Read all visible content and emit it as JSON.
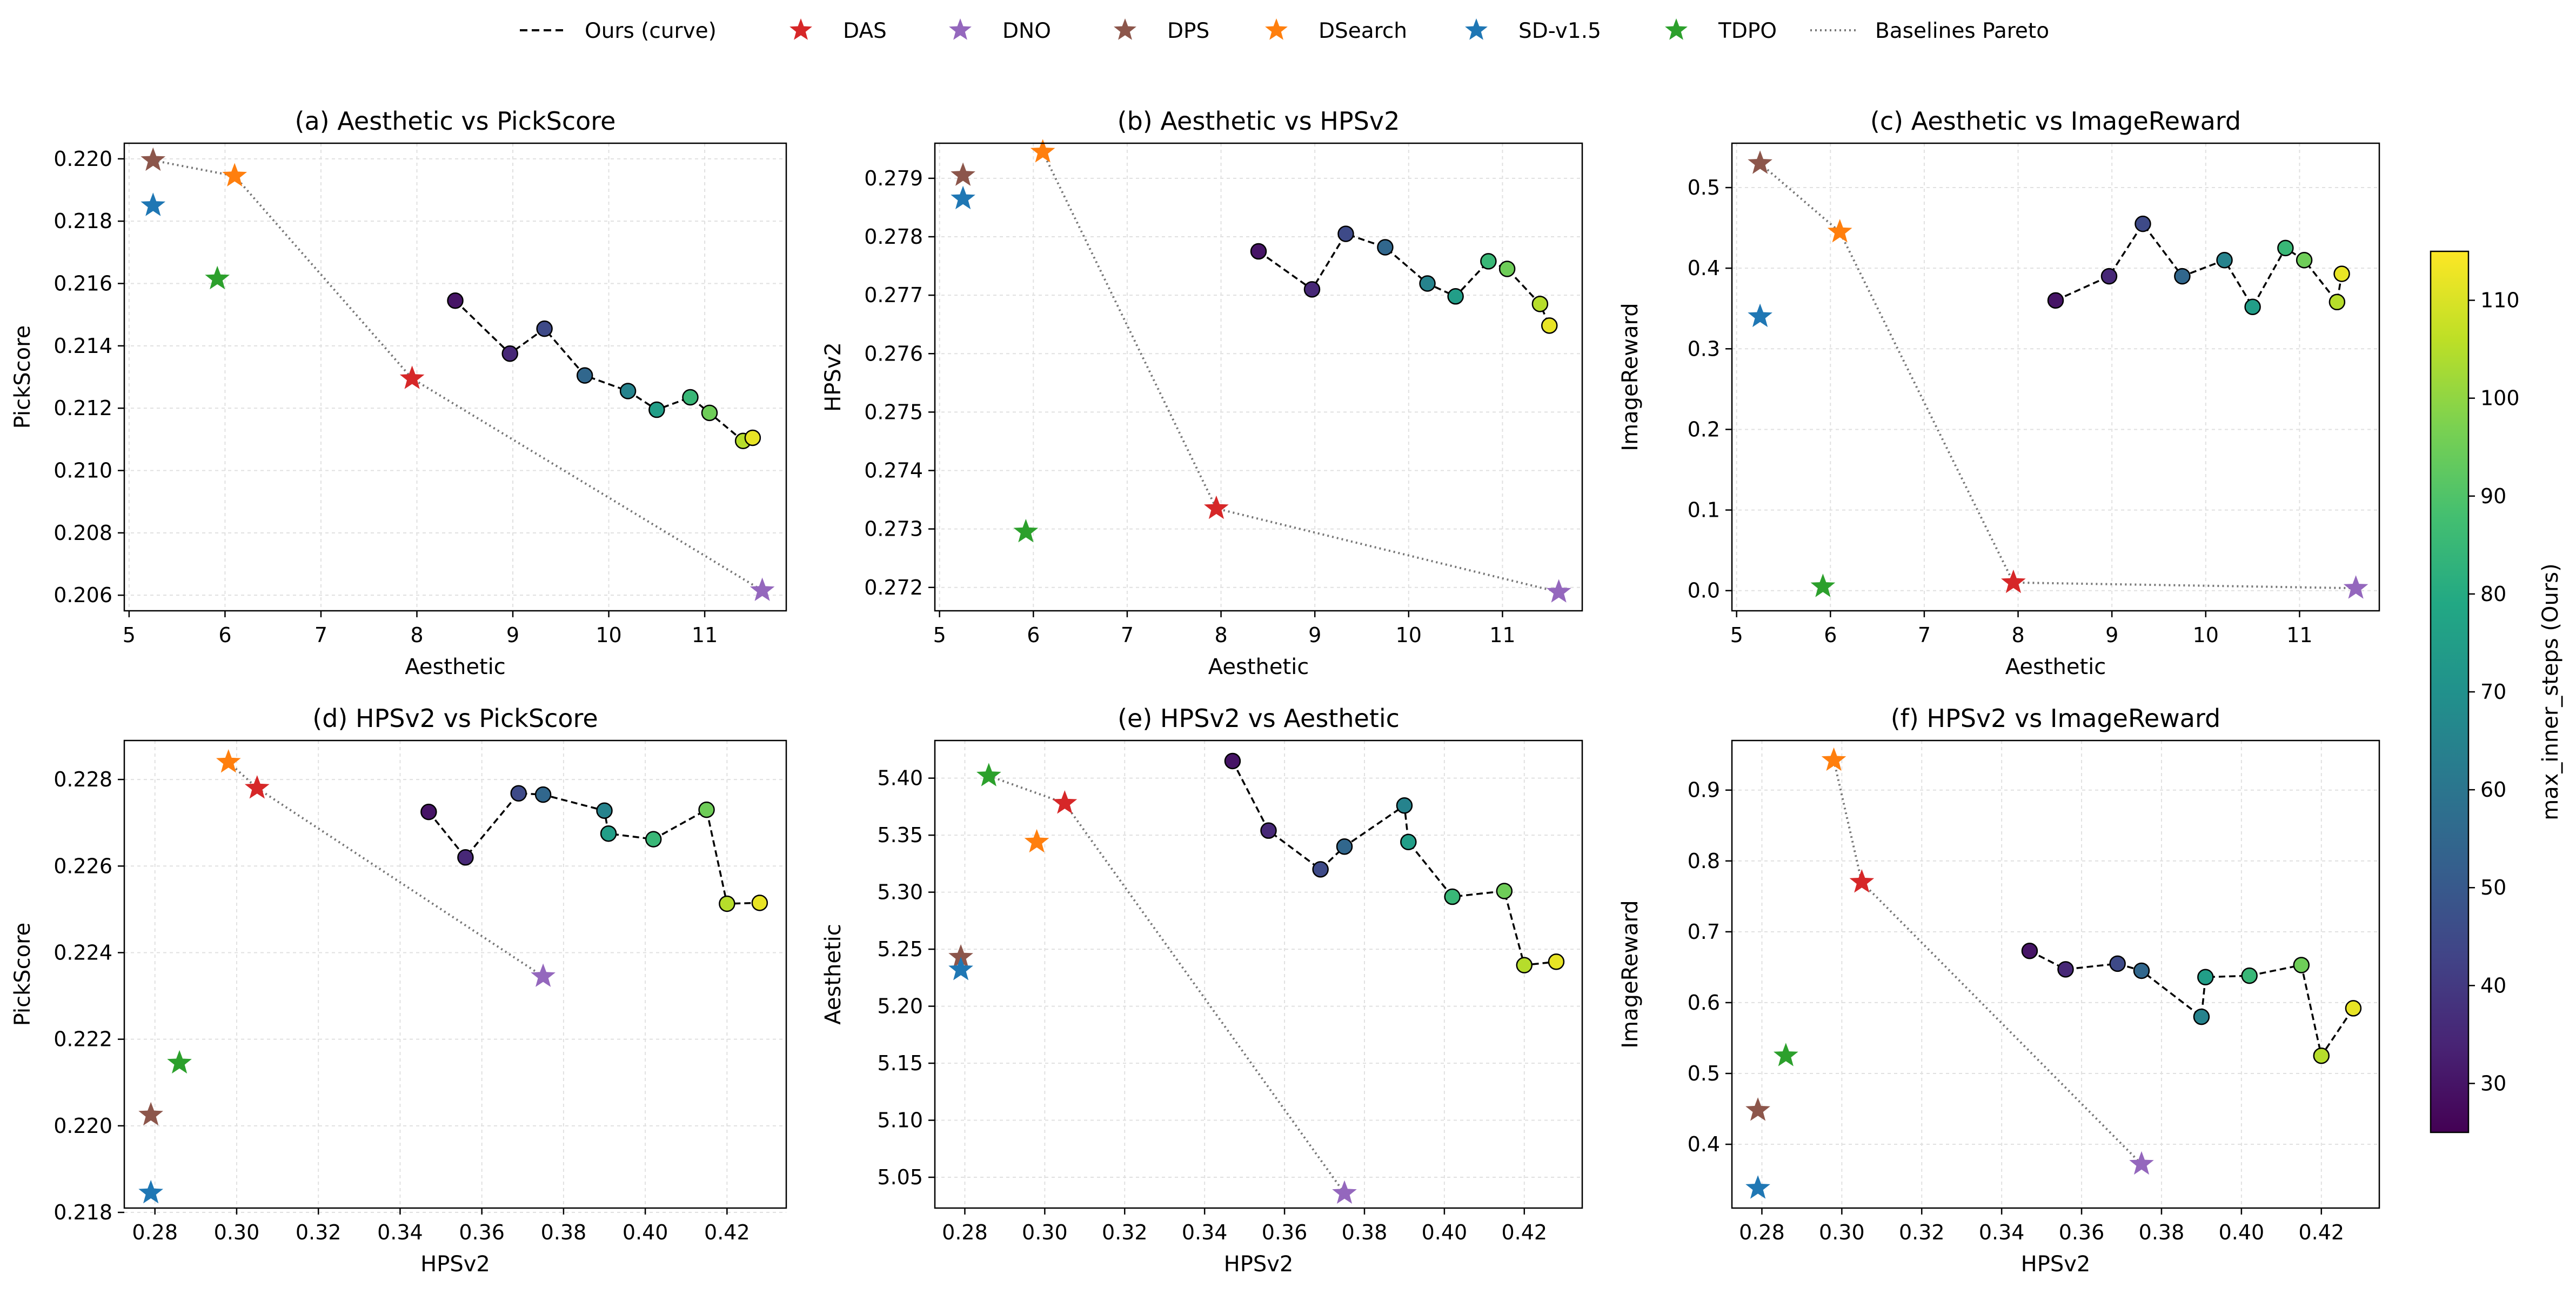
{
  "legend": {
    "items": [
      {
        "label": "Ours (curve)",
        "kind": "dashed-line",
        "color": "#000000"
      },
      {
        "label": "DAS",
        "kind": "star",
        "color": "#d62728"
      },
      {
        "label": "DNO",
        "kind": "star",
        "color": "#9467bd"
      },
      {
        "label": "DPS",
        "kind": "star",
        "color": "#8c564b"
      },
      {
        "label": "DSearch",
        "kind": "star",
        "color": "#ff7f0e"
      },
      {
        "label": "SD-v1.5",
        "kind": "star",
        "color": "#1f77b4"
      },
      {
        "label": "TDPO",
        "kind": "star",
        "color": "#2ca02c"
      },
      {
        "label": "Baselines Pareto",
        "kind": "dotted-line",
        "color": "#777777"
      }
    ]
  },
  "colorbar": {
    "label": "max_inner_steps (Ours)",
    "range": [
      25,
      115
    ],
    "ticks": [
      30,
      40,
      50,
      60,
      70,
      80,
      90,
      100,
      110
    ]
  },
  "chart_data": [
    {
      "type": "scatter",
      "title": "(a) Aesthetic vs PickScore",
      "xlabel": "Aesthetic",
      "ylabel": "PickScore",
      "xlim": [
        4.95,
        11.85
      ],
      "ylim": [
        0.2055,
        0.2205
      ],
      "xticks": [
        "5",
        "6",
        "7",
        "8",
        "9",
        "10",
        "11"
      ],
      "xtick_values": [
        5,
        6,
        7,
        8,
        9,
        10,
        11
      ],
      "yticks": [
        "0.206",
        "0.208",
        "0.210",
        "0.212",
        "0.214",
        "0.216",
        "0.218",
        "0.220"
      ],
      "ytick_values": [
        0.206,
        0.208,
        0.21,
        0.212,
        0.214,
        0.216,
        0.218,
        0.22
      ],
      "baselines": [
        {
          "name": "DPS",
          "x": 5.25,
          "y": 0.21995
        },
        {
          "name": "SD-v1.5",
          "x": 5.25,
          "y": 0.2185
        },
        {
          "name": "DSearch",
          "x": 6.1,
          "y": 0.21945
        },
        {
          "name": "TDPO",
          "x": 5.92,
          "y": 0.21615
        },
        {
          "name": "DAS",
          "x": 7.95,
          "y": 0.21295
        },
        {
          "name": "DNO",
          "x": 11.6,
          "y": 0.20615
        }
      ],
      "pareto": [
        [
          5.25,
          0.21995
        ],
        [
          6.1,
          0.21945
        ],
        [
          7.95,
          0.21295
        ],
        [
          11.6,
          0.20615
        ]
      ],
      "ours": [
        {
          "x": 8.4,
          "y": 0.21545,
          "steps": 30
        },
        {
          "x": 8.97,
          "y": 0.21375,
          "steps": 35
        },
        {
          "x": 9.33,
          "y": 0.21455,
          "steps": 45
        },
        {
          "x": 9.75,
          "y": 0.21305,
          "steps": 55
        },
        {
          "x": 10.2,
          "y": 0.21255,
          "steps": 65
        },
        {
          "x": 10.5,
          "y": 0.21195,
          "steps": 75
        },
        {
          "x": 10.85,
          "y": 0.21235,
          "steps": 85
        },
        {
          "x": 11.05,
          "y": 0.21185,
          "steps": 95
        },
        {
          "x": 11.4,
          "y": 0.21095,
          "steps": 105
        },
        {
          "x": 11.5,
          "y": 0.21105,
          "steps": 112
        }
      ]
    },
    {
      "type": "scatter",
      "title": "(b) Aesthetic vs HPSv2",
      "xlabel": "Aesthetic",
      "ylabel": "HPSv2",
      "xlim": [
        4.95,
        11.85
      ],
      "ylim": [
        0.2716,
        0.2796
      ],
      "xticks": [
        "5",
        "6",
        "7",
        "8",
        "9",
        "10",
        "11"
      ],
      "xtick_values": [
        5,
        6,
        7,
        8,
        9,
        10,
        11
      ],
      "yticks": [
        "0.272",
        "0.273",
        "0.274",
        "0.275",
        "0.276",
        "0.277",
        "0.278",
        "0.279"
      ],
      "ytick_values": [
        0.272,
        0.273,
        0.274,
        0.275,
        0.276,
        0.277,
        0.278,
        0.279
      ],
      "baselines": [
        {
          "name": "DPS",
          "x": 5.25,
          "y": 0.27905
        },
        {
          "name": "SD-v1.5",
          "x": 5.25,
          "y": 0.27865
        },
        {
          "name": "DSearch",
          "x": 6.1,
          "y": 0.27945
        },
        {
          "name": "TDPO",
          "x": 5.92,
          "y": 0.27295
        },
        {
          "name": "DAS",
          "x": 7.95,
          "y": 0.27335
        },
        {
          "name": "DNO",
          "x": 11.6,
          "y": 0.27192
        }
      ],
      "pareto": [
        [
          6.1,
          0.27945
        ],
        [
          7.95,
          0.27335
        ],
        [
          11.6,
          0.27192
        ]
      ],
      "ours": [
        {
          "x": 8.4,
          "y": 0.27775,
          "steps": 30
        },
        {
          "x": 8.97,
          "y": 0.2771,
          "steps": 35
        },
        {
          "x": 9.33,
          "y": 0.27805,
          "steps": 45
        },
        {
          "x": 9.75,
          "y": 0.27782,
          "steps": 55
        },
        {
          "x": 10.2,
          "y": 0.2772,
          "steps": 65
        },
        {
          "x": 10.5,
          "y": 0.27698,
          "steps": 75
        },
        {
          "x": 10.85,
          "y": 0.27758,
          "steps": 85
        },
        {
          "x": 11.05,
          "y": 0.27745,
          "steps": 95
        },
        {
          "x": 11.4,
          "y": 0.27685,
          "steps": 105
        },
        {
          "x": 11.5,
          "y": 0.27648,
          "steps": 112
        }
      ]
    },
    {
      "type": "scatter",
      "title": "(c) Aesthetic vs ImageReward",
      "xlabel": "Aesthetic",
      "ylabel": "ImageReward",
      "xlim": [
        4.95,
        11.85
      ],
      "ylim": [
        -0.025,
        0.555
      ],
      "xticks": [
        "5",
        "6",
        "7",
        "8",
        "9",
        "10",
        "11"
      ],
      "xtick_values": [
        5,
        6,
        7,
        8,
        9,
        10,
        11
      ],
      "yticks": [
        "0.0",
        "0.1",
        "0.2",
        "0.3",
        "0.4",
        "0.5"
      ],
      "ytick_values": [
        0,
        0.1,
        0.2,
        0.3,
        0.4,
        0.5
      ],
      "baselines": [
        {
          "name": "DPS",
          "x": 5.25,
          "y": 0.53
        },
        {
          "name": "SD-v1.5",
          "x": 5.25,
          "y": 0.34
        },
        {
          "name": "DSearch",
          "x": 6.1,
          "y": 0.445
        },
        {
          "name": "TDPO",
          "x": 5.92,
          "y": 0.005
        },
        {
          "name": "DAS",
          "x": 7.95,
          "y": 0.01
        },
        {
          "name": "DNO",
          "x": 11.6,
          "y": 0.003
        }
      ],
      "pareto": [
        [
          5.25,
          0.53
        ],
        [
          6.1,
          0.445
        ],
        [
          7.95,
          0.01
        ],
        [
          11.6,
          0.003
        ]
      ],
      "ours": [
        {
          "x": 8.4,
          "y": 0.36,
          "steps": 30
        },
        {
          "x": 8.97,
          "y": 0.39,
          "steps": 35
        },
        {
          "x": 9.33,
          "y": 0.455,
          "steps": 45
        },
        {
          "x": 9.75,
          "y": 0.39,
          "steps": 55
        },
        {
          "x": 10.2,
          "y": 0.41,
          "steps": 65
        },
        {
          "x": 10.5,
          "y": 0.352,
          "steps": 75
        },
        {
          "x": 10.85,
          "y": 0.425,
          "steps": 85
        },
        {
          "x": 11.05,
          "y": 0.41,
          "steps": 95
        },
        {
          "x": 11.4,
          "y": 0.358,
          "steps": 105
        },
        {
          "x": 11.45,
          "y": 0.393,
          "steps": 112
        }
      ]
    },
    {
      "type": "scatter",
      "title": "(d) HPSv2 vs PickScore",
      "xlabel": "HPSv2",
      "ylabel": "PickScore",
      "xlim": [
        0.2725,
        0.4345
      ],
      "ylim": [
        0.2181,
        0.2289
      ],
      "xticks": [
        "0.28",
        "0.30",
        "0.32",
        "0.34",
        "0.36",
        "0.38",
        "0.40",
        "0.42"
      ],
      "xtick_values": [
        0.28,
        0.3,
        0.32,
        0.34,
        0.36,
        0.38,
        0.4,
        0.42
      ],
      "yticks": [
        "0.218",
        "0.220",
        "0.222",
        "0.224",
        "0.226",
        "0.228"
      ],
      "ytick_values": [
        0.218,
        0.22,
        0.222,
        0.224,
        0.226,
        0.228
      ],
      "baselines": [
        {
          "name": "DSearch",
          "x": 0.298,
          "y": 0.2284
        },
        {
          "name": "DAS",
          "x": 0.305,
          "y": 0.2278
        },
        {
          "name": "DPS",
          "x": 0.279,
          "y": 0.22025
        },
        {
          "name": "TDPO",
          "x": 0.286,
          "y": 0.22145
        },
        {
          "name": "SD-v1.5",
          "x": 0.279,
          "y": 0.21845
        },
        {
          "name": "DNO",
          "x": 0.375,
          "y": 0.22345
        }
      ],
      "pareto": [
        [
          0.298,
          0.2284
        ],
        [
          0.305,
          0.2278
        ],
        [
          0.375,
          0.22345
        ]
      ],
      "ours": [
        {
          "x": 0.347,
          "y": 0.22725,
          "steps": 30
        },
        {
          "x": 0.356,
          "y": 0.2262,
          "steps": 35
        },
        {
          "x": 0.369,
          "y": 0.22768,
          "steps": 45
        },
        {
          "x": 0.375,
          "y": 0.22765,
          "steps": 55
        },
        {
          "x": 0.39,
          "y": 0.22728,
          "steps": 65
        },
        {
          "x": 0.391,
          "y": 0.22675,
          "steps": 75
        },
        {
          "x": 0.402,
          "y": 0.22662,
          "steps": 85
        },
        {
          "x": 0.415,
          "y": 0.2273,
          "steps": 95
        },
        {
          "x": 0.42,
          "y": 0.22513,
          "steps": 105
        },
        {
          "x": 0.428,
          "y": 0.22515,
          "steps": 112
        }
      ]
    },
    {
      "type": "scatter",
      "title": "(e) HPSv2 vs Aesthetic",
      "xlabel": "HPSv2",
      "ylabel": "Aesthetic",
      "xlim": [
        0.2725,
        0.4345
      ],
      "ylim": [
        5.023,
        5.433
      ],
      "xticks": [
        "0.28",
        "0.30",
        "0.32",
        "0.34",
        "0.36",
        "0.38",
        "0.40",
        "0.42"
      ],
      "xtick_values": [
        0.28,
        0.3,
        0.32,
        0.34,
        0.36,
        0.38,
        0.4,
        0.42
      ],
      "yticks": [
        "5.05",
        "5.10",
        "5.15",
        "5.20",
        "5.25",
        "5.30",
        "5.35",
        "5.40"
      ],
      "ytick_values": [
        5.05,
        5.1,
        5.15,
        5.2,
        5.25,
        5.3,
        5.35,
        5.4
      ],
      "baselines": [
        {
          "name": "TDPO",
          "x": 0.286,
          "y": 5.402
        },
        {
          "name": "DAS",
          "x": 0.305,
          "y": 5.378
        },
        {
          "name": "DSearch",
          "x": 0.298,
          "y": 5.344
        },
        {
          "name": "DPS",
          "x": 0.279,
          "y": 5.243
        },
        {
          "name": "SD-v1.5",
          "x": 0.279,
          "y": 5.232
        },
        {
          "name": "DNO",
          "x": 0.375,
          "y": 5.036
        }
      ],
      "pareto": [
        [
          0.286,
          5.402
        ],
        [
          0.305,
          5.378
        ],
        [
          0.375,
          5.036
        ]
      ],
      "ours": [
        {
          "x": 0.347,
          "y": 5.415,
          "steps": 30
        },
        {
          "x": 0.356,
          "y": 5.354,
          "steps": 35
        },
        {
          "x": 0.369,
          "y": 5.32,
          "steps": 45
        },
        {
          "x": 0.375,
          "y": 5.34,
          "steps": 55
        },
        {
          "x": 0.39,
          "y": 5.376,
          "steps": 65
        },
        {
          "x": 0.391,
          "y": 5.344,
          "steps": 75
        },
        {
          "x": 0.402,
          "y": 5.296,
          "steps": 85
        },
        {
          "x": 0.415,
          "y": 5.301,
          "steps": 95
        },
        {
          "x": 0.42,
          "y": 5.236,
          "steps": 105
        },
        {
          "x": 0.428,
          "y": 5.239,
          "steps": 112
        }
      ]
    },
    {
      "type": "scatter",
      "title": "(f) HPSv2 vs ImageReward",
      "xlabel": "HPSv2",
      "ylabel": "ImageReward",
      "xlim": [
        0.2725,
        0.4345
      ],
      "ylim": [
        0.31,
        0.97
      ],
      "xticks": [
        "0.28",
        "0.30",
        "0.32",
        "0.34",
        "0.36",
        "0.38",
        "0.40",
        "0.42"
      ],
      "xtick_values": [
        0.28,
        0.3,
        0.32,
        0.34,
        0.36,
        0.38,
        0.4,
        0.42
      ],
      "yticks": [
        "0.4",
        "0.5",
        "0.6",
        "0.7",
        "0.8",
        "0.9"
      ],
      "ytick_values": [
        0.4,
        0.5,
        0.6,
        0.7,
        0.8,
        0.9
      ],
      "baselines": [
        {
          "name": "DSearch",
          "x": 0.298,
          "y": 0.942
        },
        {
          "name": "DAS",
          "x": 0.305,
          "y": 0.77
        },
        {
          "name": "TDPO",
          "x": 0.286,
          "y": 0.525
        },
        {
          "name": "DPS",
          "x": 0.279,
          "y": 0.448
        },
        {
          "name": "SD-v1.5",
          "x": 0.279,
          "y": 0.338
        },
        {
          "name": "DNO",
          "x": 0.375,
          "y": 0.372
        }
      ],
      "pareto": [
        [
          0.298,
          0.942
        ],
        [
          0.305,
          0.77
        ],
        [
          0.375,
          0.372
        ]
      ],
      "ours": [
        {
          "x": 0.347,
          "y": 0.673,
          "steps": 30
        },
        {
          "x": 0.356,
          "y": 0.647,
          "steps": 35
        },
        {
          "x": 0.369,
          "y": 0.655,
          "steps": 45
        },
        {
          "x": 0.375,
          "y": 0.645,
          "steps": 55
        },
        {
          "x": 0.39,
          "y": 0.58,
          "steps": 65
        },
        {
          "x": 0.391,
          "y": 0.636,
          "steps": 75
        },
        {
          "x": 0.402,
          "y": 0.638,
          "steps": 85
        },
        {
          "x": 0.415,
          "y": 0.653,
          "steps": 95
        },
        {
          "x": 0.42,
          "y": 0.525,
          "steps": 105
        },
        {
          "x": 0.428,
          "y": 0.592,
          "steps": 112
        }
      ]
    }
  ]
}
